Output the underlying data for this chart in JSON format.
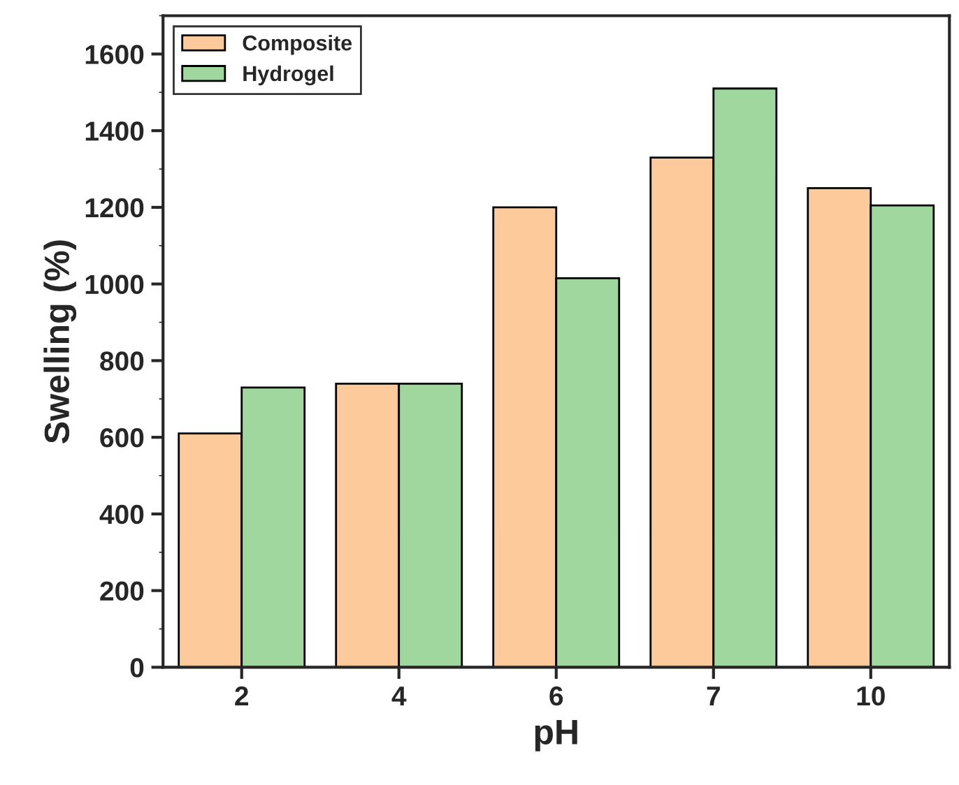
{
  "chart_data": {
    "type": "bar",
    "xlabel": "pH",
    "ylabel": "Swelling (%)",
    "categories": [
      "2",
      "4",
      "6",
      "7",
      "10"
    ],
    "series": [
      {
        "name": "Composite",
        "color": "#fdcb9b",
        "values": [
          610,
          740,
          1200,
          1330,
          1250
        ]
      },
      {
        "name": "Hydrogel",
        "color": "#9fd79f",
        "values": [
          730,
          740,
          1015,
          1510,
          1205
        ]
      }
    ],
    "ylim": [
      0,
      1700
    ],
    "yticks": [
      0,
      200,
      400,
      600,
      800,
      1000,
      1200,
      1400,
      1600
    ],
    "grid": false,
    "legend": "top left"
  }
}
